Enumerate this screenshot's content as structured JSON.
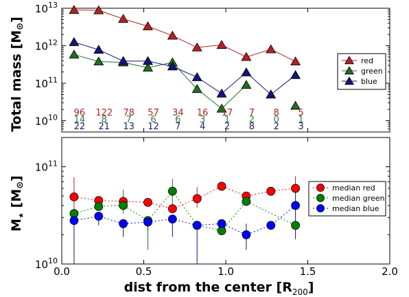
{
  "colors": {
    "red": "#b22222",
    "green": "#1f6f1f",
    "blue": "#14147a",
    "red_marker": "#ff0000",
    "green_marker": "#008000",
    "blue_marker": "#0000ff",
    "red_text": "#b22222",
    "green_text": "#2e7d2e",
    "blue_text": "#1a1a80"
  },
  "chart_data": [
    {
      "type": "line",
      "panel": "top",
      "ylabel": "Total mass  [M",
      "ylabel_sub": "⊙",
      "ylabel_suffix": "]",
      "yscale": "log",
      "ylim": [
        5000000000.0,
        10000000000000.0
      ],
      "xlim": [
        0.0,
        2.0
      ],
      "yticks": [
        {
          "value": 10000000000.0,
          "base": "10",
          "exp": "10"
        },
        {
          "value": 100000000000.0,
          "base": "10",
          "exp": "11"
        },
        {
          "value": 1000000000000.0,
          "base": "10",
          "exp": "12"
        },
        {
          "value": 10000000000000.0,
          "base": "10",
          "exp": "13"
        }
      ],
      "legend_position": "right",
      "x": [
        0.075,
        0.225,
        0.375,
        0.525,
        0.675,
        0.825,
        0.975,
        1.125,
        1.275,
        1.425
      ],
      "series": [
        {
          "name": "red",
          "key": "red",
          "marker": "triangle",
          "values": [
            9000000000000.0,
            8800000000000.0,
            5200000000000.0,
            3300000000000.0,
            1850000000000.0,
            900000000000.0,
            1050000000000.0,
            500000000000.0,
            800000000000.0,
            380000000000.0
          ]
        },
        {
          "name": "green",
          "key": "green",
          "marker": "triangle",
          "values": [
            580000000000.0,
            380000000000.0,
            360000000000.0,
            260000000000.0,
            360000000000.0,
            70000000000.0,
            21000000000.0,
            90000000000.0,
            null,
            25000000000.0
          ]
        },
        {
          "name": "blue",
          "key": "blue",
          "marker": "triangle",
          "values": [
            1250000000000.0,
            780000000000.0,
            390000000000.0,
            390000000000.0,
            280000000000.0,
            145000000000.0,
            53000000000.0,
            195000000000.0,
            50000000000.0,
            165000000000.0
          ]
        }
      ],
      "counts": {
        "red": [
          "96",
          "122",
          "78",
          "57",
          "34",
          "16",
          "17",
          "7",
          "8",
          "5"
        ],
        "green": [
          "14",
          "8",
          "7",
          "6",
          "6",
          "3",
          "1",
          "2",
          "0",
          "1"
        ],
        "blue": [
          "22",
          "21",
          "13",
          "12",
          "7",
          "4",
          "2",
          "8",
          "2",
          "3"
        ]
      }
    },
    {
      "type": "scatter",
      "panel": "bottom",
      "ylabel": "M",
      "ylabel_star": "★",
      "ylabel_unit": "[M",
      "ylabel_sub": "⊙",
      "ylabel_suffix": "]",
      "xlabel": "dist from the center [R",
      "xlabel_sub": "200",
      "xlabel_suffix": "]",
      "yscale": "log",
      "ylim": [
        10000000000.0,
        200000000000.0
      ],
      "xlim": [
        0.0,
        2.0
      ],
      "xticks": [
        "0.0",
        "0.5",
        "1.0",
        "1.5",
        "2.0"
      ],
      "xtick_values": [
        0.0,
        0.5,
        1.0,
        1.5,
        2.0
      ],
      "yticks": [
        {
          "value": 10000000000.0,
          "base": "10",
          "exp": "10"
        },
        {
          "value": 100000000000.0,
          "base": "10",
          "exp": "11"
        }
      ],
      "legend_position": "right",
      "x": [
        0.075,
        0.225,
        0.375,
        0.525,
        0.675,
        0.825,
        0.975,
        1.125,
        1.275,
        1.425
      ],
      "series": [
        {
          "name": "median red",
          "key": "red",
          "marker": "circle",
          "values": [
            49000000000.0,
            45000000000.0,
            44000000000.0,
            43000000000.0,
            37000000000.0,
            47000000000.0,
            63000000000.0,
            50000000000.0,
            56000000000.0,
            60000000000.0
          ],
          "err_low": [
            35000000000.0,
            null,
            null,
            null,
            null,
            38000000000.0,
            null,
            null,
            null,
            null
          ],
          "err_high": [
            78000000000.0,
            null,
            null,
            null,
            null,
            62000000000.0,
            null,
            null,
            null,
            80000000000.0
          ]
        },
        {
          "name": "median green",
          "key": "green",
          "marker": "circle",
          "values": [
            33000000000.0,
            39000000000.0,
            40000000000.0,
            28000000000.0,
            56000000000.0,
            25000000000.0,
            22000000000.0,
            44000000000.0,
            null,
            25000000000.0
          ],
          "err_low": [
            null,
            null,
            33000000000.0,
            14000000000.0,
            37000000000.0,
            null,
            null,
            null,
            null,
            null
          ],
          "err_high": [
            null,
            null,
            58000000000.0,
            null,
            75000000000.0,
            null,
            null,
            null,
            null,
            null
          ]
        },
        {
          "name": "median blue",
          "key": "blue",
          "marker": "circle",
          "values": [
            28000000000.0,
            31000000000.0,
            26000000000.0,
            27000000000.0,
            29000000000.0,
            25000000000.0,
            26000000000.0,
            20000000000.0,
            25000000000.0,
            40000000000.0
          ],
          "err_low": [
            10000000000.0,
            25000000000.0,
            19000000000.0,
            22000000000.0,
            19000000000.0,
            10000000000.0,
            null,
            14000000000.0,
            null,
            18000000000.0
          ],
          "err_high": [
            36000000000.0,
            null,
            null,
            null,
            null,
            null,
            null,
            26000000000.0,
            null,
            60000000000.0
          ]
        }
      ]
    }
  ]
}
